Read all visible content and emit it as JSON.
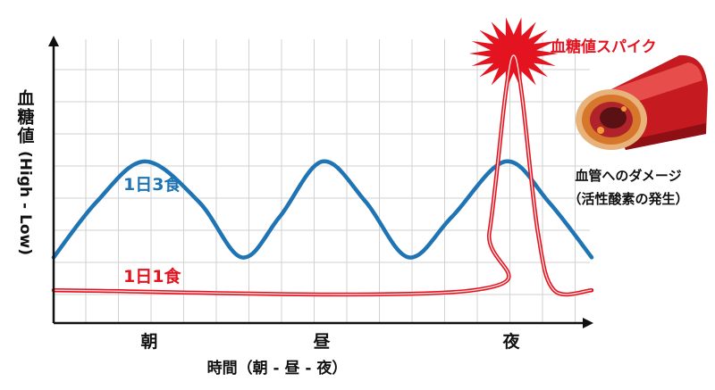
{
  "chart_data": {
    "type": "line",
    "ylabel": "血糖値",
    "ylabel_sub": "(High - Low)",
    "xlabel": "時間（朝 - 昼 - 夜）",
    "x_ticks": [
      {
        "label": "朝",
        "t": 0.18
      },
      {
        "label": "昼",
        "t": 0.5
      },
      {
        "label": "夜",
        "t": 0.855
      }
    ],
    "y_range": [
      "Low",
      "High"
    ],
    "grid": true,
    "series": [
      {
        "name": "1日3食",
        "color": "#1f74b4",
        "points": [
          [
            0,
            0.2
          ],
          [
            0.08,
            0.42
          ],
          [
            0.17,
            0.58
          ],
          [
            0.27,
            0.42
          ],
          [
            0.35,
            0.2
          ],
          [
            0.42,
            0.36
          ],
          [
            0.5,
            0.58
          ],
          [
            0.58,
            0.42
          ],
          [
            0.66,
            0.2
          ],
          [
            0.74,
            0.36
          ],
          [
            0.84,
            0.58
          ],
          [
            0.92,
            0.42
          ],
          [
            1,
            0.2
          ]
        ]
      },
      {
        "name": "1日1食",
        "color": "#e3141f",
        "points": [
          [
            0,
            0.07
          ],
          [
            0.78,
            0.07
          ],
          [
            0.81,
            0.3
          ],
          [
            0.84,
            0.85
          ],
          [
            0.855,
            1.0
          ],
          [
            0.87,
            0.85
          ],
          [
            0.9,
            0.3
          ],
          [
            0.93,
            0.07
          ],
          [
            1,
            0.07
          ]
        ]
      }
    ],
    "annotations": {
      "spike_label": "血糖値スパイク",
      "damage_label": "血管へのダメージ",
      "damage_sub": "（活性酸素の発生）"
    }
  }
}
